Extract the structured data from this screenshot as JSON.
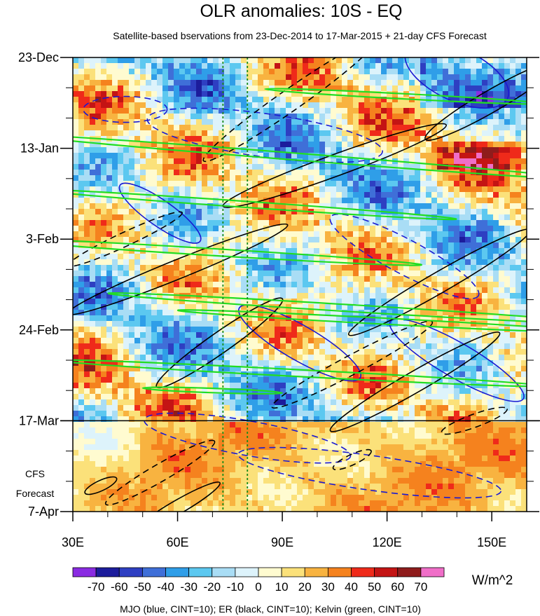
{
  "chart_data": {
    "type": "heatmap",
    "title": "OLR anomalies: 10S - EQ",
    "subtitle": "Satellite-based bservations from 23-Dec-2014 to 17-Mar-2015 + 21-day CFS Forecast",
    "xlabel": "",
    "ylabel": "",
    "x_range": [
      30,
      160
    ],
    "x_ticks": [
      30,
      60,
      90,
      120,
      150
    ],
    "x_tick_labels": [
      "30E",
      "60E",
      "90E",
      "120E",
      "150E"
    ],
    "y_ticks": [
      "23-Dec",
      "13-Jan",
      "3-Feb",
      "24-Feb",
      "17-Mar",
      "7-Apr"
    ],
    "y_tick_days": [
      0,
      21,
      42,
      63,
      84,
      105
    ],
    "y_range_days": [
      0,
      105
    ],
    "observation_end": "17-Mar",
    "forecast_note_lines": [
      "CFS",
      "Forecast"
    ],
    "units": "W/m^2",
    "colorbar": {
      "levels": [
        -70,
        -60,
        -50,
        -40,
        -30,
        -20,
        -10,
        0,
        10,
        20,
        30,
        40,
        50,
        60,
        70
      ],
      "labels": [
        "-70",
        "-60",
        "-50",
        "-40",
        "-30",
        "-20",
        "-10",
        "0",
        "10",
        "20",
        "30",
        "40",
        "50",
        "60",
        "70"
      ],
      "colors": [
        "#8a2be2",
        "#1c1c9c",
        "#2e3fc2",
        "#3f6fd8",
        "#2f9ee8",
        "#5cc8f0",
        "#a9ddf5",
        "#ddf3fb",
        "#fffbd0",
        "#fbe17a",
        "#f8b340",
        "#f5821e",
        "#ef2a1a",
        "#c41414",
        "#8f1c1c",
        "#f06ec8"
      ]
    },
    "reference_lines_lon": [
      73,
      80
    ],
    "reference_line_color": "#1a8a1a",
    "contour_colors": {
      "mjo": "#1a1ad2",
      "er": "#000000",
      "kelvin": "#22dd22"
    },
    "footnote": "MJO (blue, CINT=10); ER (black, CINT=10); Kelvin (green, CINT=10)"
  }
}
